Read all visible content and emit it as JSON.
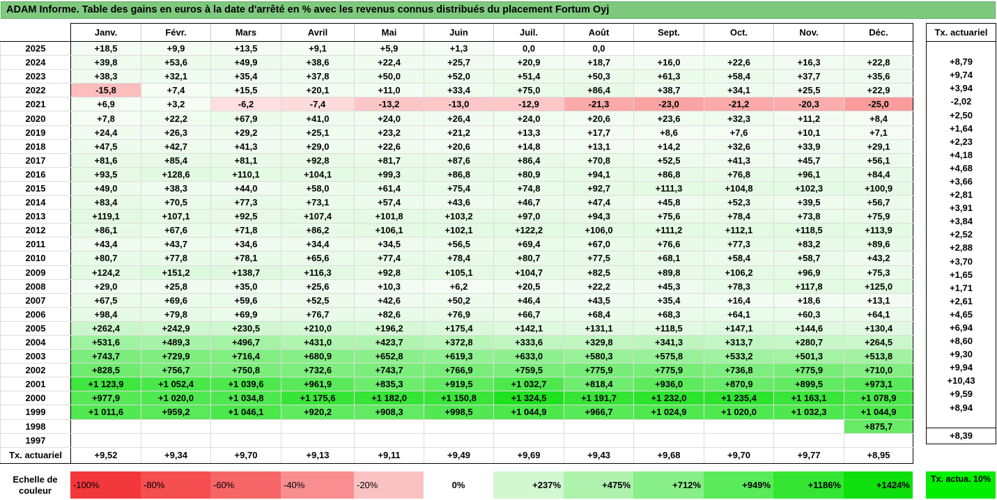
{
  "title": "ADAM Informe. Table des gains en euros à la date d'arrêté en % avec les revenus connus distribués du placement Fortum Oyj",
  "months": [
    "Janv.",
    "Févr.",
    "Mars",
    "Avril",
    "Mai",
    "Juin",
    "Juil.",
    "Août",
    "Sept.",
    "Oct.",
    "Nov.",
    "Déc."
  ],
  "tx_header": "Tx. actuariel",
  "rows": [
    {
      "year": "2025",
      "values": [
        "+18,5",
        "+9,9",
        "+13,5",
        "+9,1",
        "+5,9",
        "+1,3",
        "0,0",
        "0,0",
        "",
        "",
        "",
        ""
      ],
      "tx": ""
    },
    {
      "year": "2024",
      "values": [
        "+39,8",
        "+53,6",
        "+49,9",
        "+38,6",
        "+22,4",
        "+25,7",
        "+20,9",
        "+18,7",
        "+16,0",
        "+22,6",
        "+16,3",
        "+22,8"
      ],
      "tx": "+8,79"
    },
    {
      "year": "2023",
      "values": [
        "+38,3",
        "+32,1",
        "+35,4",
        "+37,8",
        "+50,0",
        "+52,0",
        "+51,4",
        "+50,3",
        "+61,3",
        "+58,4",
        "+37,7",
        "+35,6"
      ],
      "tx": "+9,74"
    },
    {
      "year": "2022",
      "values": [
        "-15,8",
        "+7,4",
        "+15,5",
        "+20,1",
        "+11,0",
        "+33,4",
        "+75,0",
        "+86,4",
        "+38,7",
        "+34,1",
        "+25,5",
        "+22,9"
      ],
      "tx": "+3,94"
    },
    {
      "year": "2021",
      "values": [
        "+6,9",
        "+3,2",
        "-6,2",
        "-7,4",
        "-13,2",
        "-13,0",
        "-12,9",
        "-21,3",
        "-23,0",
        "-21,2",
        "-20,3",
        "-25,0"
      ],
      "tx": "-2,02"
    },
    {
      "year": "2020",
      "values": [
        "+7,8",
        "+22,2",
        "+67,9",
        "+41,0",
        "+24,0",
        "+26,4",
        "+24,0",
        "+20,6",
        "+23,6",
        "+32,3",
        "+11,2",
        "+8,4"
      ],
      "tx": "+2,50"
    },
    {
      "year": "2019",
      "values": [
        "+24,4",
        "+26,3",
        "+29,2",
        "+25,1",
        "+23,2",
        "+21,2",
        "+13,3",
        "+17,7",
        "+8,6",
        "+7,6",
        "+10,1",
        "+7,1"
      ],
      "tx": "+1,64"
    },
    {
      "year": "2018",
      "values": [
        "+47,5",
        "+42,7",
        "+41,3",
        "+29,0",
        "+22,6",
        "+20,6",
        "+14,8",
        "+13,1",
        "+14,2",
        "+32,6",
        "+33,9",
        "+29,1"
      ],
      "tx": "+2,23"
    },
    {
      "year": "2017",
      "values": [
        "+81,6",
        "+85,4",
        "+81,1",
        "+92,8",
        "+81,7",
        "+87,6",
        "+86,4",
        "+70,8",
        "+52,5",
        "+41,3",
        "+45,7",
        "+56,1"
      ],
      "tx": "+4,18"
    },
    {
      "year": "2016",
      "values": [
        "+93,5",
        "+128,6",
        "+110,1",
        "+104,1",
        "+99,3",
        "+86,8",
        "+80,9",
        "+94,1",
        "+86,8",
        "+76,8",
        "+96,1",
        "+84,4"
      ],
      "tx": "+4,68"
    },
    {
      "year": "2015",
      "values": [
        "+49,0",
        "+38,3",
        "+44,0",
        "+58,0",
        "+61,4",
        "+75,4",
        "+74,8",
        "+92,7",
        "+111,3",
        "+104,8",
        "+102,3",
        "+100,9"
      ],
      "tx": "+3,66"
    },
    {
      "year": "2014",
      "values": [
        "+83,4",
        "+70,5",
        "+77,3",
        "+73,1",
        "+57,4",
        "+43,6",
        "+46,7",
        "+47,4",
        "+45,8",
        "+52,3",
        "+39,5",
        "+56,7"
      ],
      "tx": "+2,81"
    },
    {
      "year": "2013",
      "values": [
        "+119,1",
        "+107,1",
        "+92,5",
        "+107,4",
        "+101,8",
        "+103,2",
        "+97,0",
        "+94,3",
        "+75,6",
        "+78,4",
        "+73,8",
        "+75,9"
      ],
      "tx": "+3,91"
    },
    {
      "year": "2012",
      "values": [
        "+86,1",
        "+67,6",
        "+71,8",
        "+86,2",
        "+106,1",
        "+102,1",
        "+122,2",
        "+106,0",
        "+111,2",
        "+112,1",
        "+118,5",
        "+113,9"
      ],
      "tx": "+3,84"
    },
    {
      "year": "2011",
      "values": [
        "+43,4",
        "+43,7",
        "+34,6",
        "+34,4",
        "+34,5",
        "+56,5",
        "+69,4",
        "+67,0",
        "+76,6",
        "+77,3",
        "+83,2",
        "+89,6"
      ],
      "tx": "+2,52"
    },
    {
      "year": "2010",
      "values": [
        "+80,7",
        "+77,8",
        "+78,1",
        "+65,6",
        "+77,4",
        "+78,4",
        "+80,7",
        "+77,5",
        "+68,1",
        "+58,4",
        "+58,7",
        "+43,2"
      ],
      "tx": "+2,88"
    },
    {
      "year": "2009",
      "values": [
        "+124,2",
        "+151,2",
        "+138,7",
        "+116,3",
        "+92,8",
        "+105,1",
        "+104,7",
        "+82,5",
        "+89,8",
        "+106,2",
        "+96,9",
        "+75,3"
      ],
      "tx": "+3,70"
    },
    {
      "year": "2008",
      "values": [
        "+29,0",
        "+25,8",
        "+35,0",
        "+25,6",
        "+10,3",
        "+6,2",
        "+20,5",
        "+22,2",
        "+45,3",
        "+78,3",
        "+117,8",
        "+125,0"
      ],
      "tx": "+1,65"
    },
    {
      "year": "2007",
      "values": [
        "+67,5",
        "+69,6",
        "+59,6",
        "+52,5",
        "+42,6",
        "+50,2",
        "+46,4",
        "+43,5",
        "+35,4",
        "+16,4",
        "+18,6",
        "+13,1"
      ],
      "tx": "+1,71"
    },
    {
      "year": "2006",
      "values": [
        "+98,4",
        "+79,8",
        "+69,9",
        "+76,7",
        "+82,6",
        "+76,9",
        "+66,7",
        "+68,4",
        "+68,3",
        "+64,1",
        "+60,3",
        "+64,1"
      ],
      "tx": "+2,61"
    },
    {
      "year": "2005",
      "values": [
        "+262,4",
        "+242,9",
        "+230,5",
        "+210,0",
        "+196,2",
        "+175,4",
        "+142,1",
        "+131,1",
        "+118,5",
        "+147,1",
        "+144,6",
        "+130,4"
      ],
      "tx": "+4,65"
    },
    {
      "year": "2004",
      "values": [
        "+531,6",
        "+489,3",
        "+496,7",
        "+431,0",
        "+423,7",
        "+372,8",
        "+333,6",
        "+329,8",
        "+341,3",
        "+313,7",
        "+280,7",
        "+264,5"
      ],
      "tx": "+6,94"
    },
    {
      "year": "2003",
      "values": [
        "+743,7",
        "+729,9",
        "+716,4",
        "+680,9",
        "+652,8",
        "+619,3",
        "+633,0",
        "+580,3",
        "+575,8",
        "+533,2",
        "+501,3",
        "+513,8"
      ],
      "tx": "+8,60"
    },
    {
      "year": "2002",
      "values": [
        "+828,5",
        "+756,7",
        "+750,8",
        "+732,6",
        "+743,7",
        "+766,9",
        "+759,5",
        "+775,9",
        "+775,9",
        "+736,8",
        "+775,9",
        "+710,0"
      ],
      "tx": "+9,30"
    },
    {
      "year": "2001",
      "values": [
        "+1 123,9",
        "+1 052,4",
        "+1 039,6",
        "+961,9",
        "+835,3",
        "+919,5",
        "+1 032,7",
        "+818,4",
        "+936,0",
        "+870,9",
        "+899,5",
        "+973,1"
      ],
      "tx": "+9,94"
    },
    {
      "year": "2000",
      "values": [
        "+977,9",
        "+1 020,0",
        "+1 034,8",
        "+1 175,6",
        "+1 182,0",
        "+1 150,8",
        "+1 324,5",
        "+1 191,7",
        "+1 232,0",
        "+1 235,4",
        "+1 163,1",
        "+1 078,9"
      ],
      "tx": "+10,43"
    },
    {
      "year": "1999",
      "values": [
        "+1 011,6",
        "+959,2",
        "+1 046,1",
        "+920,2",
        "+908,3",
        "+998,5",
        "+1 044,9",
        "+966,7",
        "+1 024,9",
        "+1 020,0",
        "+1 032,3",
        "+1 044,9"
      ],
      "tx": "+9,59"
    },
    {
      "year": "1998",
      "values": [
        "",
        "",
        "",
        "",
        "",
        "",
        "",
        "",
        "",
        "",
        "",
        "+875,7"
      ],
      "tx": "+8,94"
    },
    {
      "year": "1997",
      "values": [
        "",
        "",
        "",
        "",
        "",
        "",
        "",
        "",
        "",
        "",
        "",
        ""
      ],
      "tx": ""
    }
  ],
  "footer": {
    "label": "Tx. actuariel",
    "values": [
      "+9,52",
      "+9,34",
      "+9,70",
      "+9,13",
      "+9,11",
      "+9,49",
      "+9,69",
      "+9,43",
      "+9,68",
      "+9,70",
      "+9,77",
      "+8,95"
    ],
    "tx": "+8,39"
  },
  "scale": {
    "label": "Echelle de couleur",
    "items": [
      {
        "text": "-100%",
        "color": "#f2383c",
        "align": "left"
      },
      {
        "text": "-80%",
        "color": "#f44e51",
        "align": "left"
      },
      {
        "text": "-60%",
        "color": "#f66568",
        "align": "left"
      },
      {
        "text": "-40%",
        "color": "#f88e90",
        "align": "left"
      },
      {
        "text": "-20%",
        "color": "#fbc2c3",
        "align": "left"
      },
      {
        "text": "0%",
        "color": "#ffffff",
        "align": "center"
      },
      {
        "text": "+237%",
        "color": "#d2f8d2",
        "align": "right"
      },
      {
        "text": "+475%",
        "color": "#aef2ae",
        "align": "right"
      },
      {
        "text": "+712%",
        "color": "#88ee88",
        "align": "right"
      },
      {
        "text": "+949%",
        "color": "#5aeb5a",
        "align": "right"
      },
      {
        "text": "+1186%",
        "color": "#34e534",
        "align": "right"
      },
      {
        "text": "+1424%",
        "color": "#0ee00e",
        "align": "right"
      }
    ],
    "tx_legend": "Tx. actua. 10%",
    "tx_legend_color": "#00ee00"
  }
}
